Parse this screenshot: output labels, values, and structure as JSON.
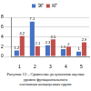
{
  "chart_data": {
    "type": "bar",
    "categories": [
      "1",
      "2",
      "3",
      "4",
      "5"
    ],
    "series": [
      {
        "name": "ЭГ",
        "color": "#4472c4",
        "values": [
          1.2,
          7.1,
          2.3,
          1.5,
          1.0
        ]
      },
      {
        "name": "КГ",
        "color": "#c0504d",
        "values": [
          4.2,
          2.1,
          3.5,
          2.0,
          2.9
        ]
      }
    ],
    "ylim": [
      0,
      8
    ],
    "yticks": [
      0,
      2,
      4,
      6,
      8
    ],
    "grid": true,
    "legend": "top",
    "data_labels": true,
    "annotations": [
      "Рисунок 13 – Сравнение результатов оценки уровня функционального",
      "состояния испытуемых групп"
    ]
  }
}
